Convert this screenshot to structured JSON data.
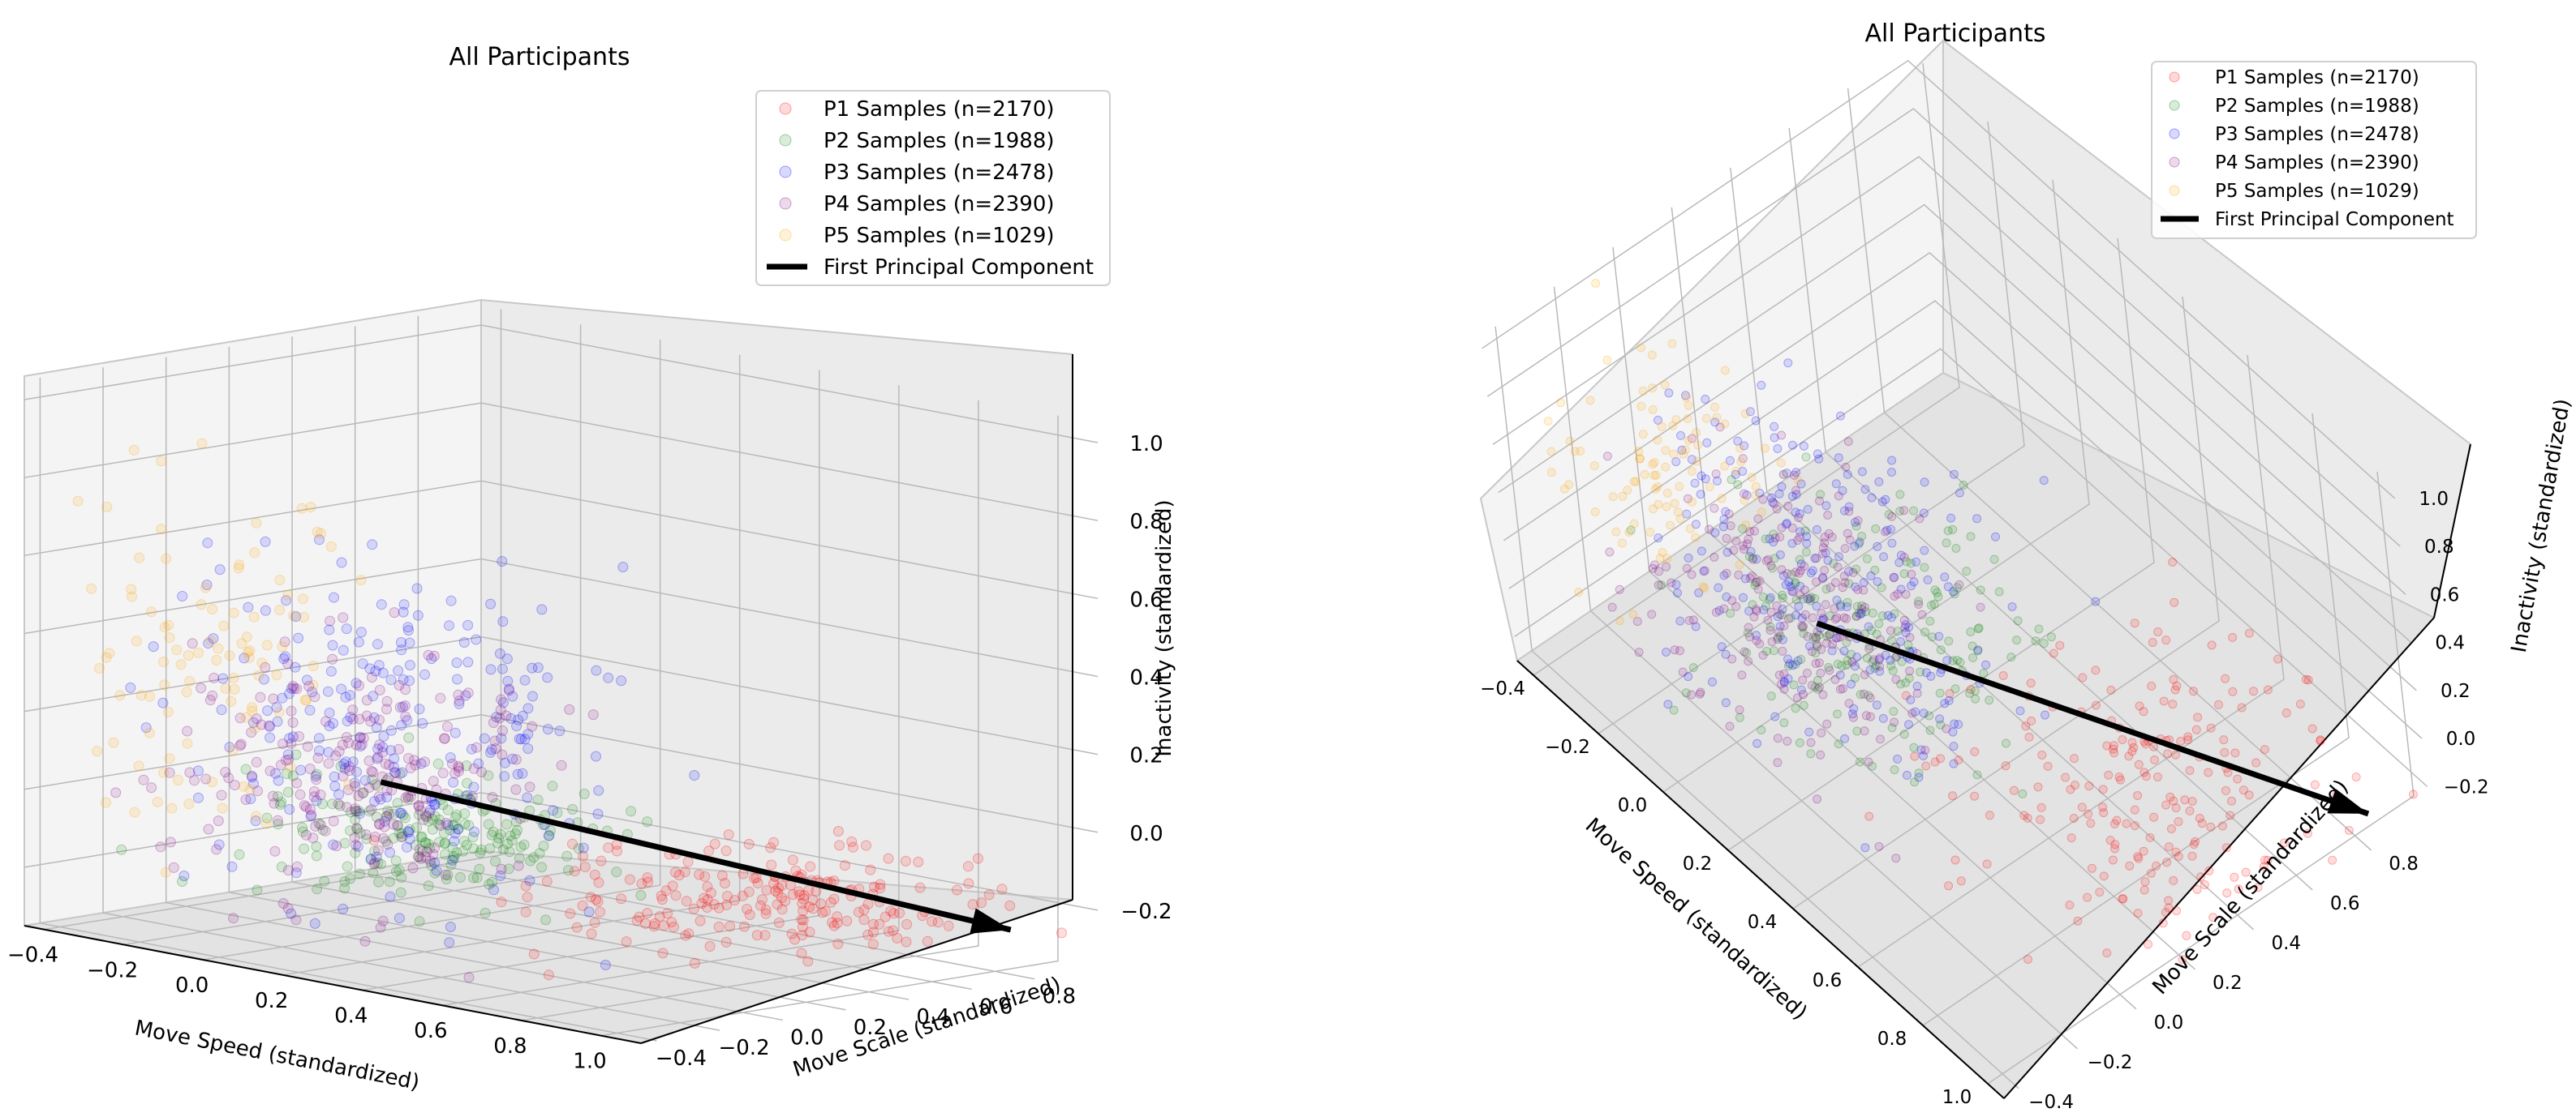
{
  "chart_data": [
    {
      "type": "scatter",
      "view": "elevated-front",
      "title": "All Participants",
      "xlabel": "Move Speed (standardized)",
      "ylabel": "Move Scale (standardized)",
      "zlabel": "Inactivity (standardized)",
      "xlim": [
        -0.45,
        1.1
      ],
      "ylim": [
        -0.45,
        1.0
      ],
      "zlim": [
        -0.35,
        1.05
      ],
      "x_ticks": [
        -0.4,
        -0.2,
        0.0,
        0.2,
        0.4,
        0.6,
        0.8,
        1.0
      ],
      "x_tick_labels": [
        "−0.4",
        "−0.2",
        "0.0",
        "0.2",
        "0.4",
        "0.6",
        "0.8",
        "1.0"
      ],
      "y_ticks": [
        -0.4,
        -0.2,
        0.0,
        0.2,
        0.4,
        0.6,
        0.8
      ],
      "y_tick_labels": [
        "−0.4",
        "−0.2",
        "0.0",
        "0.2",
        "0.4",
        "0.6",
        "0.8"
      ],
      "z_ticks": [
        -0.2,
        0.0,
        0.2,
        0.4,
        0.6,
        0.8,
        1.0
      ],
      "z_tick_labels": [
        "−0.2",
        "0.0",
        "0.2",
        "0.4",
        "0.6",
        "0.8",
        "1.0"
      ],
      "legend_position": "top-right",
      "grid": true,
      "series": [
        {
          "name": "P1 Samples (n=2170)",
          "n": 2170,
          "color": "#ff0000",
          "cluster": {
            "x": 0.7,
            "y": 0.45,
            "z": -0.18
          },
          "spread": [
            0.2,
            0.25,
            0.05
          ]
        },
        {
          "name": "P2 Samples (n=1988)",
          "n": 1988,
          "color": "#008000",
          "cluster": {
            "x": 0.05,
            "y": 0.2,
            "z": -0.1
          },
          "spread": [
            0.18,
            0.18,
            0.07
          ]
        },
        {
          "name": "P3 Samples (n=2478)",
          "n": 2478,
          "color": "#0000ff",
          "cluster": {
            "x": 0.05,
            "y": 0.1,
            "z": 0.15
          },
          "spread": [
            0.22,
            0.18,
            0.22
          ]
        },
        {
          "name": "P4 Samples (n=2390)",
          "n": 2390,
          "color": "#800080",
          "cluster": {
            "x": 0.0,
            "y": 0.05,
            "z": 0.05
          },
          "spread": [
            0.18,
            0.16,
            0.15
          ]
        },
        {
          "name": "P5 Samples (n=1029)",
          "n": 1029,
          "color": "#ffa500",
          "cluster": {
            "x": -0.3,
            "y": -0.05,
            "z": 0.3
          },
          "spread": [
            0.1,
            0.15,
            0.25
          ]
        }
      ],
      "principal_component": {
        "label": "First Principal Component",
        "start": [
          0.05,
          0.05,
          0.05
        ],
        "end": [
          1.0,
          0.85,
          -0.25
        ]
      }
    },
    {
      "type": "scatter",
      "view": "top-down-diagonal",
      "title": "All Participants",
      "xlabel": "Move Speed (standardized)",
      "ylabel": "Move Scale (standardized)",
      "zlabel": "Inactivity (standardized)",
      "xlim": [
        -0.45,
        1.05
      ],
      "ylim": [
        -0.45,
        1.0
      ],
      "zlim": [
        -0.3,
        1.05
      ],
      "x_ticks": [
        -0.4,
        -0.2,
        0.0,
        0.2,
        0.4,
        0.6,
        0.8,
        1.0
      ],
      "x_tick_labels": [
        "−0.4",
        "−0.2",
        "0.0",
        "0.2",
        "0.4",
        "0.6",
        "0.8",
        "1.0"
      ],
      "y_ticks": [
        -0.4,
        -0.2,
        0.0,
        0.2,
        0.4,
        0.6,
        0.8
      ],
      "y_tick_labels": [
        "−0.4",
        "−0.2",
        "0.0",
        "0.2",
        "0.4",
        "0.6",
        "0.8"
      ],
      "z_ticks": [
        -0.2,
        0.0,
        0.2,
        0.4,
        0.6,
        0.8,
        1.0
      ],
      "z_tick_labels": [
        "−0.2",
        "0.0",
        "0.2",
        "0.4",
        "0.6",
        "0.8",
        "1.0"
      ],
      "legend_position": "top-right",
      "grid": true,
      "series": [
        {
          "name": "P1 Samples (n=2170)",
          "n": 2170,
          "color": "#ff0000"
        },
        {
          "name": "P2 Samples (n=1988)",
          "n": 1988,
          "color": "#008000"
        },
        {
          "name": "P3 Samples (n=2478)",
          "n": 2478,
          "color": "#0000ff"
        },
        {
          "name": "P4 Samples (n=2390)",
          "n": 2390,
          "color": "#800080"
        },
        {
          "name": "P5 Samples (n=1029)",
          "n": 1029,
          "color": "#ffa500"
        }
      ],
      "principal_component": {
        "label": "First Principal Component",
        "start": [
          0.05,
          0.05,
          0.05
        ],
        "end": [
          1.0,
          0.85,
          -0.25
        ]
      }
    }
  ]
}
